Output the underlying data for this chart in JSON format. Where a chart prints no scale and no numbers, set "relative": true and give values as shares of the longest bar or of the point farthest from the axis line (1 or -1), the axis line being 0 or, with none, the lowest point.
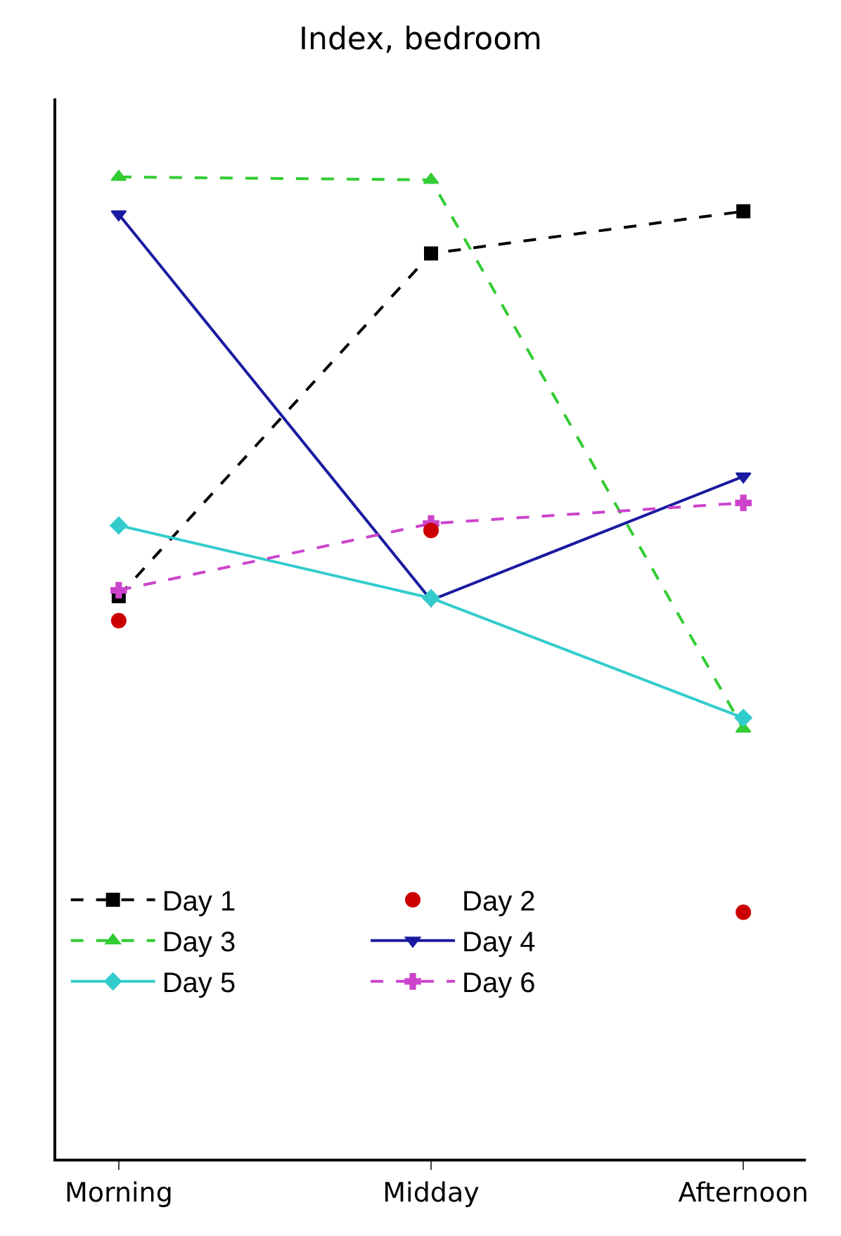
{
  "chart_data": {
    "type": "line",
    "title": "Index, bedroom",
    "relative": true,
    "categories": [
      "Morning",
      "Midday",
      "Afternoon"
    ],
    "grid": false,
    "legend": "bottom left",
    "series": [
      {
        "name": "Day 1",
        "color": "#000000",
        "marker": "square",
        "line_style": "dashed",
        "values": [
          0.573,
          0.922,
          0.965
        ]
      },
      {
        "name": "Day 2",
        "type": "scatter",
        "color": "#cc0000",
        "marker": "circle",
        "values": [
          0.548,
          0.64,
          0.251
        ]
      },
      {
        "name": "Day 3",
        "color": "#33cc33",
        "marker": "triangle",
        "line_style": "dashed",
        "values": [
          1.0,
          0.997,
          0.438
        ]
      },
      {
        "name": "Day 4",
        "color": "#1a1aa0",
        "marker": "triangle-down",
        "line_style": "solid",
        "values": [
          0.962,
          0.569,
          0.695
        ]
      },
      {
        "name": "Day 5",
        "color": "#33cccc",
        "marker": "diamond",
        "line_style": "solid",
        "values": [
          0.645,
          0.571,
          0.449
        ]
      },
      {
        "name": "Day 6",
        "color": "#cc44cc",
        "marker": "cross",
        "line_style": "dashed",
        "values": [
          0.579,
          0.647,
          0.668
        ]
      }
    ]
  }
}
